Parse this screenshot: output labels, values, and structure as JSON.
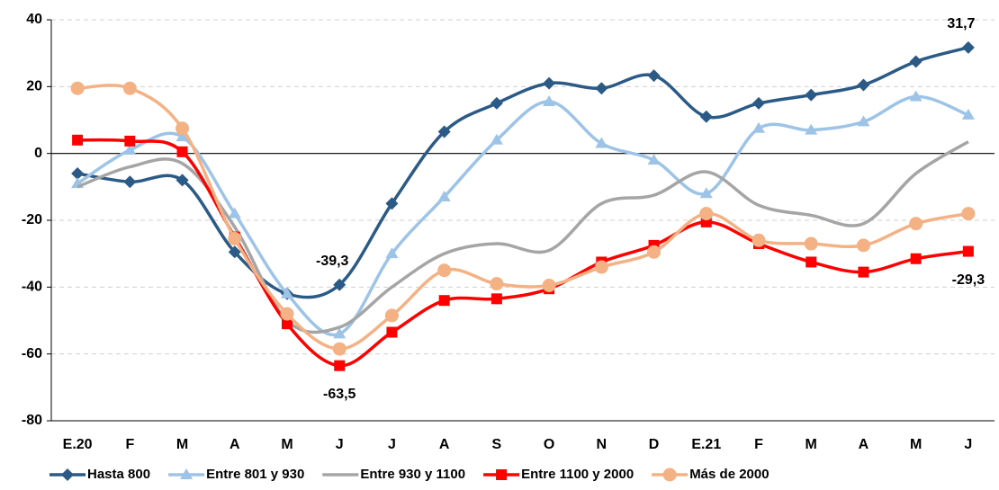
{
  "chart_data": {
    "type": "line",
    "categories": [
      "E.20",
      "F",
      "M",
      "A",
      "M",
      "J",
      "J",
      "A",
      "S",
      "O",
      "N",
      "D",
      "E.21",
      "F",
      "M",
      "A",
      "M",
      "J"
    ],
    "ylim": [
      -80,
      40
    ],
    "yticks": [
      -80,
      -60,
      -40,
      -20,
      0,
      20,
      40
    ],
    "grid": true,
    "legend": "bottom",
    "series": [
      {
        "name": "Hasta 800",
        "color": "#2b5a86",
        "marker": "diamond",
        "values": [
          -6,
          -8.5,
          -8,
          -29.5,
          -42,
          -39.3,
          -15,
          6.5,
          15,
          21,
          19.5,
          23.3,
          11,
          15,
          17.5,
          20.5,
          27.5,
          31.7
        ],
        "value_labels": [
          null,
          null,
          null,
          null,
          null,
          "-39,3",
          null,
          null,
          null,
          null,
          null,
          null,
          null,
          null,
          null,
          null,
          null,
          "31,7"
        ]
      },
      {
        "name": "Entre 801 y 930",
        "color": "#9dc3e6",
        "marker": "triangle",
        "values": [
          -9,
          1,
          5,
          -18,
          -42,
          -54,
          -30,
          -13,
          4,
          15.5,
          3,
          -2,
          -12,
          7.5,
          7,
          9.5,
          17,
          11.5
        ]
      },
      {
        "name": "Entre 930 y 1100",
        "color": "#a5a5a5",
        "marker": "none",
        "values": [
          -10,
          -4,
          -3,
          -22,
          -50,
          -52,
          -40,
          -30,
          -27,
          -29,
          -15,
          -12.5,
          -5.5,
          -15.5,
          -18.5,
          -21,
          -6,
          3.5
        ]
      },
      {
        "name": "Entre 1100 y 2000",
        "color": "#ff0000",
        "marker": "square",
        "values": [
          4,
          3.7,
          0.5,
          -25,
          -51,
          -63.5,
          -53.5,
          -44,
          -43.5,
          -40.5,
          -32.5,
          -27.5,
          -20.5,
          -27,
          -32.5,
          -35.5,
          -31.5,
          -29.3
        ],
        "value_labels": [
          null,
          null,
          null,
          null,
          null,
          "-63,5",
          null,
          null,
          null,
          null,
          null,
          null,
          null,
          null,
          null,
          null,
          null,
          "-29,3"
        ]
      },
      {
        "name": "Más de 2000",
        "color": "#f4b183",
        "marker": "circle",
        "values": [
          19.5,
          19.5,
          7.5,
          -25.5,
          -48,
          -58.5,
          -48.5,
          -35,
          -39,
          -39.5,
          -34,
          -29.5,
          -18,
          -26,
          -27,
          -27.5,
          -21,
          -18
        ]
      }
    ]
  }
}
